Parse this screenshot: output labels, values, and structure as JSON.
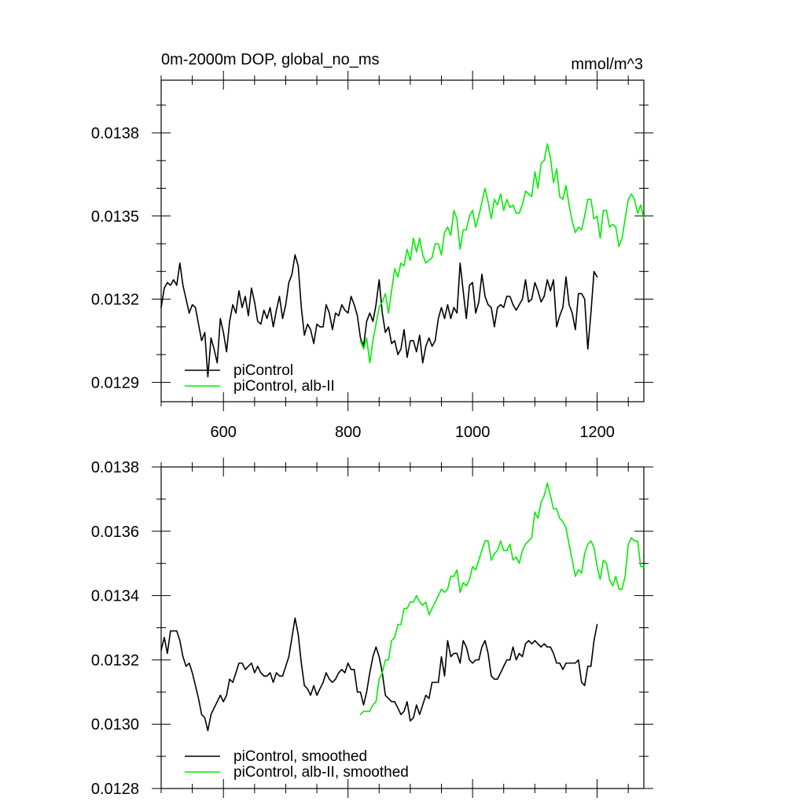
{
  "chart_data": [
    {
      "type": "line",
      "title": "0m-2000m DOP, global_no_ms",
      "units": "mmol/m^3",
      "xlim": [
        500,
        1275
      ],
      "ylim": [
        0.01283,
        0.01399
      ],
      "x_ticks": [
        600,
        800,
        1000,
        1200
      ],
      "x_tick_labels": [
        "600",
        "800",
        "1000",
        "1200"
      ],
      "y_ticks": [
        0.0129,
        0.0132,
        0.0135,
        0.0138
      ],
      "y_tick_labels": [
        "0.0129",
        "0.0132",
        "0.0135",
        "0.0138"
      ],
      "grid": false,
      "legend_position": "bottom-left",
      "series": [
        {
          "name": "piControl",
          "color": "#000000",
          "x": [
            500,
            505,
            510,
            515,
            520,
            525,
            530,
            535,
            540,
            545,
            550,
            555,
            560,
            565,
            570,
            575,
            580,
            585,
            590,
            595,
            600,
            605,
            610,
            615,
            620,
            625,
            630,
            635,
            640,
            645,
            650,
            655,
            660,
            665,
            670,
            675,
            680,
            685,
            690,
            695,
            700,
            705,
            710,
            715,
            720,
            725,
            730,
            735,
            740,
            745,
            750,
            755,
            760,
            765,
            770,
            775,
            780,
            785,
            790,
            795,
            800,
            805,
            810,
            815,
            820,
            825,
            830,
            835,
            840,
            845,
            850,
            855,
            860,
            865,
            870,
            875,
            880,
            885,
            890,
            895,
            900,
            905,
            910,
            915,
            920,
            925,
            930,
            935,
            940,
            945,
            950,
            955,
            960,
            965,
            970,
            975,
            980,
            985,
            990,
            995,
            1000,
            1005,
            1010,
            1015,
            1020,
            1025,
            1030,
            1035,
            1040,
            1045,
            1050,
            1055,
            1060,
            1065,
            1070,
            1075,
            1080,
            1085,
            1090,
            1095,
            1100,
            1105,
            1110,
            1115,
            1120,
            1125,
            1130,
            1135,
            1140,
            1145,
            1150,
            1155,
            1160,
            1165,
            1170,
            1175,
            1180,
            1185,
            1190,
            1195,
            1200
          ],
          "values": [
            0.01317,
            0.01324,
            0.01326,
            0.01325,
            0.01327,
            0.01325,
            0.01333,
            0.01325,
            0.0132,
            0.01315,
            0.01318,
            0.01317,
            0.01311,
            0.01305,
            0.01308,
            0.01292,
            0.01306,
            0.01302,
            0.01297,
            0.01313,
            0.01308,
            0.01301,
            0.01312,
            0.01318,
            0.01315,
            0.01323,
            0.01317,
            0.01321,
            0.01314,
            0.01324,
            0.01319,
            0.01312,
            0.01311,
            0.01316,
            0.01313,
            0.01317,
            0.0131,
            0.01316,
            0.01321,
            0.01313,
            0.01318,
            0.01326,
            0.01329,
            0.01336,
            0.01332,
            0.01317,
            0.01307,
            0.01311,
            0.01309,
            0.01304,
            0.01311,
            0.0131,
            0.0131,
            0.01318,
            0.01315,
            0.01309,
            0.01315,
            0.01314,
            0.01318,
            0.01316,
            0.01315,
            0.01321,
            0.01318,
            0.01314,
            0.01306,
            0.01303,
            0.01312,
            0.01315,
            0.01312,
            0.01318,
            0.01327,
            0.01315,
            0.01308,
            0.0131,
            0.01304,
            0.01305,
            0.013,
            0.01302,
            0.01309,
            0.01299,
            0.01305,
            0.01305,
            0.01301,
            0.01307,
            0.01297,
            0.01303,
            0.01306,
            0.01303,
            0.01305,
            0.01313,
            0.01317,
            0.01313,
            0.01318,
            0.01313,
            0.01317,
            0.01315,
            0.01333,
            0.01323,
            0.01313,
            0.01325,
            0.01326,
            0.01315,
            0.01319,
            0.01329,
            0.01321,
            0.01318,
            0.01317,
            0.0131,
            0.01317,
            0.01318,
            0.01317,
            0.01321,
            0.01321,
            0.01318,
            0.01316,
            0.01318,
            0.0132,
            0.01327,
            0.01319,
            0.0132,
            0.01326,
            0.01323,
            0.01319,
            0.01321,
            0.01327,
            0.01323,
            0.01327,
            0.0131,
            0.01314,
            0.01317,
            0.01328,
            0.01318,
            0.01315,
            0.01309,
            0.01322,
            0.01322,
            0.0132,
            0.01302,
            0.01315,
            0.0133,
            0.01328
          ]
        },
        {
          "name": "piControl, alb-II",
          "color": "#00ee00",
          "x": [
            820,
            825,
            830,
            835,
            840,
            845,
            850,
            855,
            860,
            865,
            870,
            875,
            880,
            885,
            890,
            895,
            900,
            905,
            910,
            915,
            920,
            925,
            930,
            935,
            940,
            945,
            950,
            955,
            960,
            965,
            970,
            975,
            980,
            985,
            990,
            995,
            1000,
            1005,
            1010,
            1015,
            1020,
            1025,
            1030,
            1035,
            1040,
            1045,
            1050,
            1055,
            1060,
            1065,
            1070,
            1075,
            1080,
            1085,
            1090,
            1095,
            1100,
            1105,
            1110,
            1115,
            1120,
            1125,
            1130,
            1135,
            1140,
            1145,
            1150,
            1155,
            1160,
            1165,
            1170,
            1175,
            1180,
            1185,
            1190,
            1195,
            1200,
            1205,
            1210,
            1215,
            1220,
            1225,
            1230,
            1235,
            1240,
            1245,
            1250,
            1255,
            1260,
            1265,
            1270,
            1275
          ],
          "values": [
            0.01305,
            0.01302,
            0.01306,
            0.01297,
            0.01305,
            0.01311,
            0.01317,
            0.01319,
            0.01322,
            0.01315,
            0.01323,
            0.01331,
            0.01328,
            0.01333,
            0.01332,
            0.01338,
            0.01334,
            0.01342,
            0.01337,
            0.01342,
            0.01336,
            0.01333,
            0.01334,
            0.01335,
            0.0134,
            0.0134,
            0.01336,
            0.01344,
            0.01346,
            0.01343,
            0.01352,
            0.01349,
            0.01338,
            0.01345,
            0.01345,
            0.0135,
            0.01352,
            0.01346,
            0.0135,
            0.01355,
            0.0136,
            0.01355,
            0.01349,
            0.01356,
            0.01354,
            0.01358,
            0.01352,
            0.01356,
            0.01353,
            0.01354,
            0.01351,
            0.01351,
            0.01354,
            0.01359,
            0.01358,
            0.01357,
            0.01366,
            0.0136,
            0.01369,
            0.0137,
            0.01376,
            0.01371,
            0.01362,
            0.01367,
            0.01357,
            0.01356,
            0.01361,
            0.01354,
            0.01348,
            0.01344,
            0.01346,
            0.01345,
            0.0135,
            0.01356,
            0.01356,
            0.01349,
            0.0135,
            0.01342,
            0.01352,
            0.01352,
            0.01346,
            0.01347,
            0.01346,
            0.01339,
            0.01342,
            0.01349,
            0.01356,
            0.01358,
            0.01356,
            0.01351,
            0.01354,
            0.01349
          ]
        }
      ]
    },
    {
      "type": "line",
      "title": "",
      "xlim": [
        500,
        1275
      ],
      "ylim": [
        0.0128,
        0.0138
      ],
      "x_ticks": [
        600,
        800,
        1000,
        1200
      ],
      "y_ticks": [
        0.0128,
        0.013,
        0.0132,
        0.0134,
        0.0136,
        0.0138
      ],
      "y_tick_labels": [
        "0.0128",
        "0.0130",
        "0.0132",
        "0.0134",
        "0.0136",
        "0.0138"
      ],
      "grid": false,
      "legend_position": "bottom-left",
      "series": [
        {
          "name": "piControl, smoothed",
          "color": "#000000",
          "x": [
            500,
            505,
            510,
            515,
            520,
            525,
            530,
            535,
            540,
            545,
            550,
            555,
            560,
            565,
            570,
            575,
            580,
            585,
            590,
            595,
            600,
            605,
            610,
            615,
            620,
            625,
            630,
            635,
            640,
            645,
            650,
            655,
            660,
            665,
            670,
            675,
            680,
            685,
            690,
            695,
            700,
            705,
            710,
            715,
            720,
            725,
            730,
            735,
            740,
            745,
            750,
            755,
            760,
            765,
            770,
            775,
            780,
            785,
            790,
            795,
            800,
            805,
            810,
            815,
            820,
            825,
            830,
            835,
            840,
            845,
            850,
            855,
            860,
            865,
            870,
            875,
            880,
            885,
            890,
            895,
            900,
            905,
            910,
            915,
            920,
            925,
            930,
            935,
            940,
            945,
            950,
            955,
            960,
            965,
            970,
            975,
            980,
            985,
            990,
            995,
            1000,
            1005,
            1010,
            1015,
            1020,
            1025,
            1030,
            1035,
            1040,
            1045,
            1050,
            1055,
            1060,
            1065,
            1070,
            1075,
            1080,
            1085,
            1090,
            1095,
            1100,
            1105,
            1110,
            1115,
            1120,
            1125,
            1130,
            1135,
            1140,
            1145,
            1150,
            1155,
            1160,
            1165,
            1170,
            1175,
            1180,
            1185,
            1190,
            1195,
            1200
          ],
          "values": [
            0.01323,
            0.01327,
            0.01322,
            0.01329,
            0.01329,
            0.01329,
            0.01326,
            0.01321,
            0.01318,
            0.01319,
            0.01316,
            0.01312,
            0.01308,
            0.01303,
            0.01302,
            0.01298,
            0.01303,
            0.01305,
            0.01307,
            0.01309,
            0.01307,
            0.01309,
            0.01314,
            0.01313,
            0.01316,
            0.01319,
            0.01319,
            0.01317,
            0.01318,
            0.01319,
            0.01316,
            0.01318,
            0.01316,
            0.01315,
            0.01315,
            0.01316,
            0.01313,
            0.01316,
            0.01315,
            0.01315,
            0.01318,
            0.01321,
            0.01327,
            0.01333,
            0.01328,
            0.01319,
            0.01312,
            0.01311,
            0.01309,
            0.01312,
            0.01309,
            0.01311,
            0.01313,
            0.01316,
            0.01314,
            0.01313,
            0.01314,
            0.01316,
            0.01317,
            0.01316,
            0.01319,
            0.01317,
            0.01317,
            0.0131,
            0.0131,
            0.01306,
            0.0131,
            0.01316,
            0.01321,
            0.01324,
            0.01321,
            0.01316,
            0.01309,
            0.01308,
            0.01307,
            0.01307,
            0.01305,
            0.01303,
            0.01304,
            0.01307,
            0.01301,
            0.01302,
            0.01306,
            0.01303,
            0.01306,
            0.01309,
            0.01308,
            0.01313,
            0.01313,
            0.01313,
            0.01321,
            0.01315,
            0.01326,
            0.01321,
            0.01322,
            0.01322,
            0.01319,
            0.01326,
            0.01324,
            0.0132,
            0.01319,
            0.0132,
            0.0132,
            0.01324,
            0.01326,
            0.01322,
            0.01315,
            0.01314,
            0.01314,
            0.01316,
            0.01318,
            0.0132,
            0.0132,
            0.01324,
            0.0132,
            0.01322,
            0.01321,
            0.01325,
            0.01326,
            0.01325,
            0.01326,
            0.01325,
            0.01324,
            0.01325,
            0.01324,
            0.01324,
            0.01322,
            0.01319,
            0.01319,
            0.01317,
            0.01319,
            0.01319,
            0.01319,
            0.01319,
            0.0132,
            0.01313,
            0.01312,
            0.01318,
            0.01318,
            0.01326,
            0.01331
          ]
        },
        {
          "name": "piControl, alb-II, smoothed",
          "color": "#00ee00",
          "x": [
            820,
            825,
            830,
            835,
            840,
            845,
            850,
            855,
            860,
            865,
            870,
            875,
            880,
            885,
            890,
            895,
            900,
            905,
            910,
            915,
            920,
            925,
            930,
            935,
            940,
            945,
            950,
            955,
            960,
            965,
            970,
            975,
            980,
            985,
            990,
            995,
            1000,
            1005,
            1010,
            1015,
            1020,
            1025,
            1030,
            1035,
            1040,
            1045,
            1050,
            1055,
            1060,
            1065,
            1070,
            1075,
            1080,
            1085,
            1090,
            1095,
            1100,
            1105,
            1110,
            1115,
            1120,
            1125,
            1130,
            1135,
            1140,
            1145,
            1150,
            1155,
            1160,
            1165,
            1170,
            1175,
            1180,
            1185,
            1190,
            1195,
            1200,
            1205,
            1210,
            1215,
            1220,
            1225,
            1230,
            1235,
            1240,
            1245,
            1250,
            1255,
            1260,
            1265,
            1270,
            1275
          ],
          "values": [
            0.01303,
            0.01304,
            0.01304,
            0.01304,
            0.01306,
            0.01307,
            0.01314,
            0.01316,
            0.0132,
            0.0132,
            0.01326,
            0.01327,
            0.01331,
            0.01331,
            0.01336,
            0.01336,
            0.01338,
            0.01338,
            0.0134,
            0.01338,
            0.01337,
            0.01338,
            0.01334,
            0.01336,
            0.01338,
            0.0134,
            0.01342,
            0.01341,
            0.01342,
            0.01346,
            0.01346,
            0.01348,
            0.01341,
            0.01344,
            0.01343,
            0.01345,
            0.01349,
            0.01348,
            0.01351,
            0.01354,
            0.01357,
            0.01357,
            0.01351,
            0.01353,
            0.01354,
            0.01357,
            0.01354,
            0.01354,
            0.01356,
            0.01351,
            0.01352,
            0.0135,
            0.01354,
            0.01356,
            0.01357,
            0.01358,
            0.01366,
            0.01364,
            0.01369,
            0.01371,
            0.01375,
            0.01371,
            0.01367,
            0.01367,
            0.01364,
            0.01363,
            0.01361,
            0.01356,
            0.01351,
            0.01346,
            0.01348,
            0.01347,
            0.01353,
            0.01356,
            0.01357,
            0.01355,
            0.01349,
            0.01345,
            0.01351,
            0.0135,
            0.01345,
            0.01343,
            0.01346,
            0.01342,
            0.01342,
            0.01346,
            0.01356,
            0.01358,
            0.01357,
            0.01357,
            0.01349,
            0.01349
          ]
        }
      ]
    }
  ]
}
